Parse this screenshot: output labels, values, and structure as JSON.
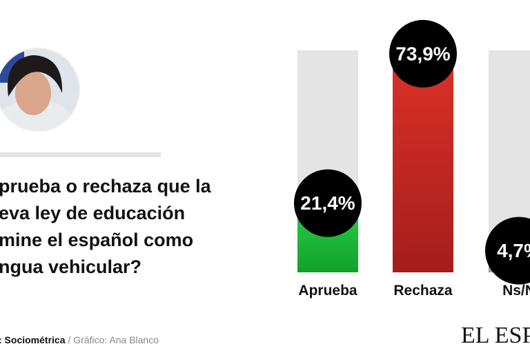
{
  "question_lines": [
    "prueba o rechaza que la",
    "eva ley de educación",
    "mine el español como",
    "ngua vehicular?"
  ],
  "source": {
    "label": ": Sociométrica",
    "credit": "/ Gráfico: Ana Blanco"
  },
  "logo": "EL ESPA",
  "chart_data": {
    "type": "bar",
    "categories": [
      "Aprueba",
      "Rechaza",
      "Ns/N"
    ],
    "values": [
      21.4,
      73.9,
      4.7
    ],
    "value_labels": [
      "21,4%",
      "73,9%",
      "4,7%"
    ],
    "colors": [
      "#1fb83a",
      "#c62a22",
      "#9a9a9a"
    ],
    "ylim": [
      0,
      78
    ]
  }
}
